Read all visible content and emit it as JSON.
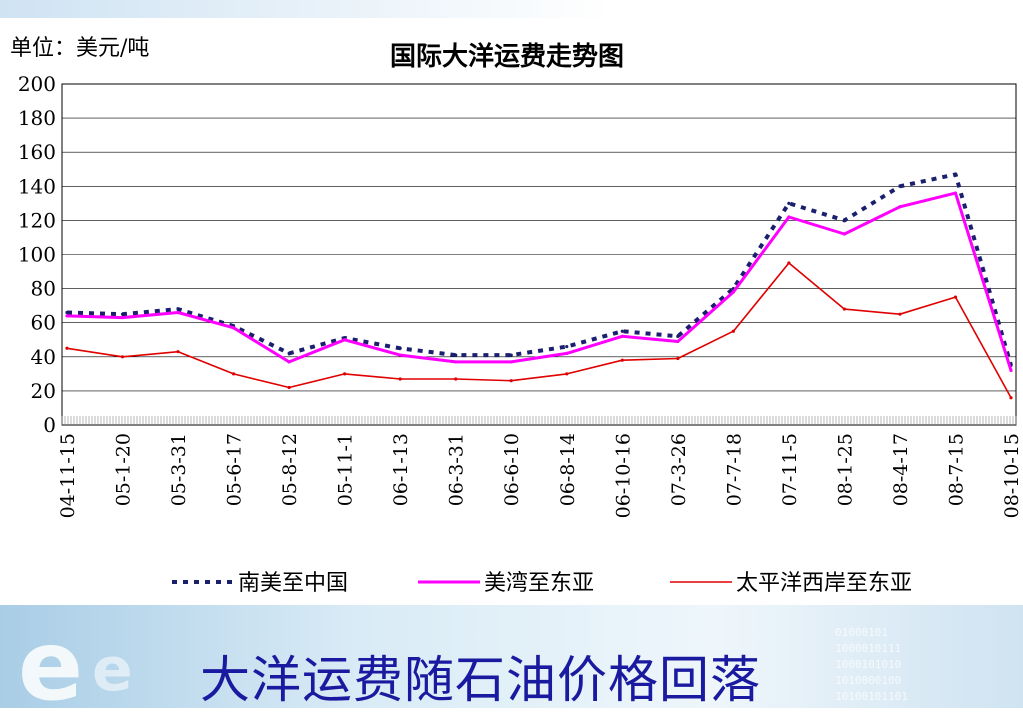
{
  "slide": {
    "unit_label": "单位：美元/吨",
    "chart_title": "国际大洋运费走势图",
    "headline": "大洋运费随石油价格回落",
    "binary_text": "01000101\n1000010111\n1000101010\n1010000100\n10100101101"
  },
  "chart_data": {
    "type": "line",
    "title": "国际大洋运费走势图",
    "ylabel": "单位：美元/吨",
    "ylim": [
      0,
      200
    ],
    "yticks": [
      0,
      20,
      40,
      60,
      80,
      100,
      120,
      140,
      160,
      180,
      200
    ],
    "grid": true,
    "legend_position": "bottom",
    "x": [
      "04-11-15",
      "05-1-20",
      "05-3-31",
      "05-6-17",
      "05-8-12",
      "05-11-1",
      "06-1-13",
      "06-3-31",
      "06-6-10",
      "06-8-14",
      "06-10-16",
      "07-3-26",
      "07-7-18",
      "07-11-5",
      "08-1-25",
      "08-4-17",
      "08-7-15",
      "08-10-15"
    ],
    "series": [
      {
        "name": "南美至中国",
        "color": "#1a1f6e",
        "dash": true,
        "values": [
          66,
          65,
          68,
          58,
          42,
          51,
          45,
          41,
          41,
          46,
          55,
          52,
          80,
          130,
          120,
          140,
          147,
          35
        ]
      },
      {
        "name": "美湾至东亚",
        "color": "#ff00ff",
        "dash": false,
        "values": [
          64,
          63,
          66,
          57,
          37,
          50,
          41,
          37,
          37,
          42,
          52,
          49,
          78,
          122,
          112,
          128,
          136,
          32
        ]
      },
      {
        "name": "太平洋西岸至东亚",
        "color": "#e00000",
        "dash": false,
        "values": [
          45,
          40,
          43,
          30,
          22,
          30,
          27,
          27,
          26,
          30,
          38,
          39,
          55,
          95,
          68,
          65,
          75,
          16
        ]
      }
    ]
  }
}
